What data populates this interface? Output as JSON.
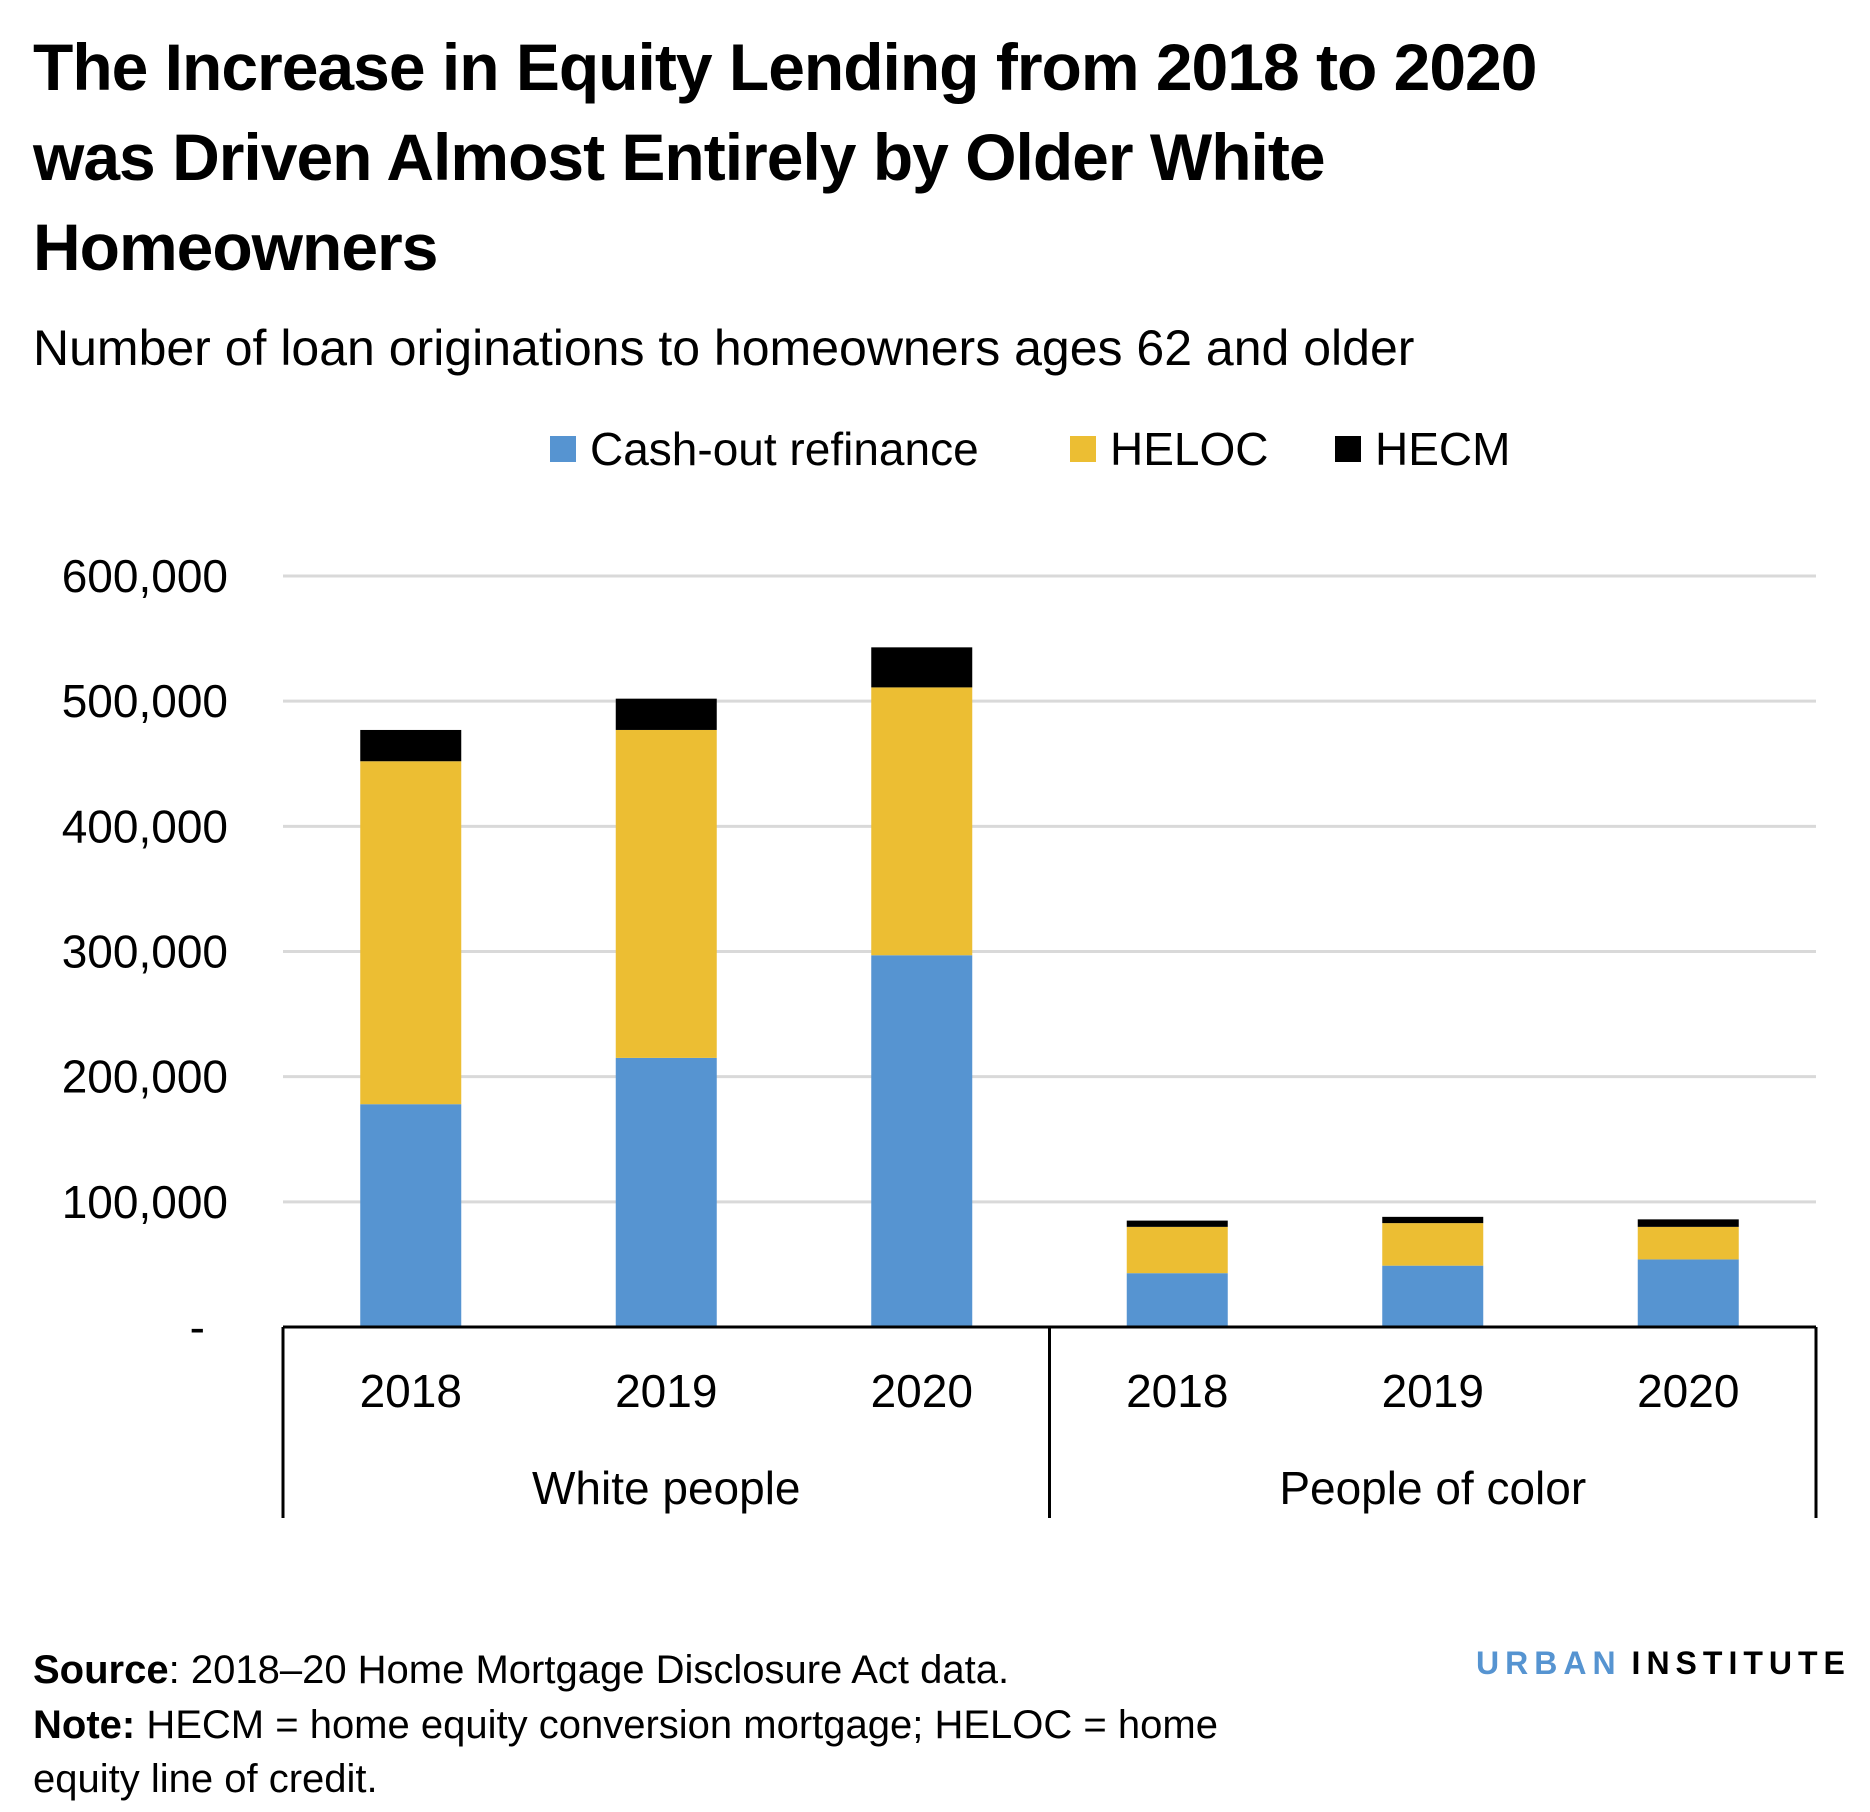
{
  "chart_data": {
    "type": "bar",
    "stacked": true,
    "title": "The Increase in Equity Lending from 2018 to 2020 was Driven Almost Entirely by Older White Homeowners",
    "title_lines": [
      "The Increase in Equity Lending from 2018 to 2020",
      "was Driven Almost Entirely by Older White",
      "Homeowners"
    ],
    "subtitle": "Number of loan originations to homeowners ages 62 and older",
    "groups": [
      "White people",
      "People of color"
    ],
    "categories": [
      "2018",
      "2019",
      "2020",
      "2018",
      "2019",
      "2020"
    ],
    "series": [
      {
        "name": "Cash-out refinance",
        "color": "#5694d1",
        "values": [
          178000,
          215000,
          297000,
          43000,
          49000,
          54000
        ]
      },
      {
        "name": "HELOC",
        "color": "#ecbe33",
        "values": [
          274000,
          262000,
          214000,
          37000,
          34000,
          26000
        ]
      },
      {
        "name": "HECM",
        "color": "#000000",
        "values": [
          25000,
          25000,
          32000,
          5000,
          5000,
          6000
        ]
      }
    ],
    "ylim": [
      0,
      600000
    ],
    "yticks": [
      0,
      100000,
      200000,
      300000,
      400000,
      500000,
      600000
    ],
    "ytick_labels": [
      "-",
      "100,000",
      "200,000",
      "300,000",
      "400,000",
      "500,000",
      "600,000"
    ],
    "grid": true,
    "legend_position": "top-center",
    "xlabel": "",
    "ylabel": ""
  },
  "footer": {
    "source_label": "Source",
    "source_text": ": 2018–20 Home Mortgage Disclosure Act data.",
    "note_label": "Note:",
    "note_text_1": " HECM = home equity conversion mortgage; HELOC = home",
    "note_text_2": "equity line of credit."
  },
  "logo": {
    "part1": "URBAN",
    "part2": "INSTITUTE",
    "color1": "#5694d1",
    "color2": "#000000"
  }
}
